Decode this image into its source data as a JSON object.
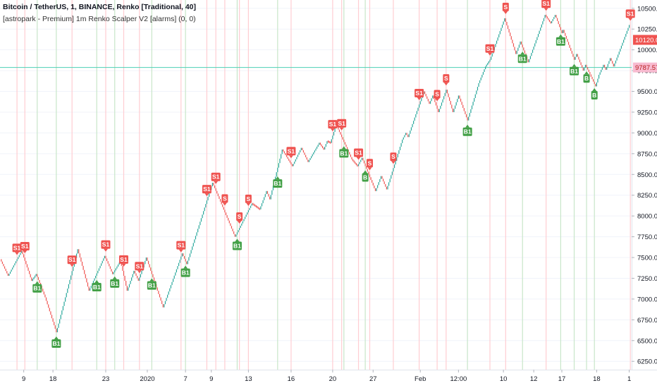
{
  "header": {
    "title": "Bitcoin / TetherUS, 1, BINANCE, Renko [Traditional, 40]",
    "indicator": "[astropark - Premium] 1m Renko Scalper V2 [alarms] (0, 0)"
  },
  "colors": {
    "up": "#26a69a",
    "down": "#ef5350",
    "buy_bg": "#43a047",
    "sell_bg": "#ef5350",
    "current_price_bg": "#ef5350",
    "hline": "#4dd0b4",
    "hline_label_bg": "#f8bbd0",
    "hline_label_text": "#b71c1c",
    "axis_text": "#131722",
    "grid": "#f0f3fa"
  },
  "price_labels": {
    "current": "10120.00",
    "line": "9787.57"
  },
  "chart_data": {
    "type": "renko",
    "box_size": 40,
    "ylim": [
      6150,
      10600
    ],
    "y_ticks": [
      "6250.00",
      "6500.00",
      "6750.00",
      "7000.00",
      "7250.00",
      "7500.00",
      "7750.00",
      "8000.00",
      "8250.00",
      "8500.00",
      "8750.00",
      "9000.00",
      "9250.00",
      "9500.00",
      "9750.00",
      "10000.00",
      "10250.00",
      "10500.00"
    ],
    "x_ticks": [
      "9",
      "18",
      "23",
      "2020",
      "7",
      "9",
      "13",
      "16",
      "20",
      "27",
      "Feb",
      "12:00",
      "10",
      "12",
      "17",
      "18",
      "1"
    ],
    "current_price": 10120.0,
    "horizontal_line": 9787.57,
    "path": [
      [
        7480,
        0
      ],
      [
        7280,
        7
      ],
      [
        7580,
        19
      ],
      [
        7220,
        28
      ],
      [
        7300,
        32
      ],
      [
        7020,
        40
      ],
      [
        6600,
        50
      ],
      [
        7600,
        69
      ],
      [
        7100,
        79
      ],
      [
        7520,
        93
      ],
      [
        7300,
        100
      ],
      [
        7460,
        107
      ],
      [
        7100,
        113
      ],
      [
        7340,
        119
      ],
      [
        7220,
        123
      ],
      [
        7500,
        130
      ],
      [
        6900,
        145
      ],
      [
        7550,
        162
      ],
      [
        7420,
        166
      ],
      [
        8400,
        189
      ],
      [
        7750,
        209
      ],
      [
        8150,
        224
      ],
      [
        8080,
        231
      ],
      [
        8300,
        237
      ],
      [
        8200,
        240
      ],
      [
        8800,
        251
      ],
      [
        8600,
        260
      ],
      [
        8820,
        268
      ],
      [
        8650,
        274
      ],
      [
        8880,
        284
      ],
      [
        8800,
        288
      ],
      [
        8900,
        291
      ],
      [
        8880,
        294
      ],
      [
        9100,
        299
      ],
      [
        8680,
        313
      ],
      [
        8600,
        318
      ],
      [
        8700,
        322
      ],
      [
        8300,
        334
      ],
      [
        8480,
        339
      ],
      [
        8320,
        344
      ],
      [
        8920,
        358
      ],
      [
        9000,
        361
      ],
      [
        8950,
        363
      ],
      [
        9500,
        377
      ],
      [
        9350,
        382
      ],
      [
        9450,
        385
      ],
      [
        9250,
        390
      ],
      [
        9520,
        397
      ],
      [
        9250,
        403
      ],
      [
        9450,
        408
      ],
      [
        9150,
        416
      ],
      [
        9600,
        426
      ],
      [
        9800,
        432
      ],
      [
        9880,
        436
      ],
      [
        10380,
        449
      ],
      [
        9950,
        459
      ],
      [
        10100,
        463
      ],
      [
        9850,
        470
      ],
      [
        10420,
        485
      ],
      [
        10320,
        490
      ],
      [
        10420,
        494
      ],
      [
        10200,
        500
      ],
      [
        10240,
        501
      ],
      [
        9880,
        511
      ],
      [
        9950,
        513
      ],
      [
        9750,
        519
      ],
      [
        9820,
        521
      ],
      [
        9560,
        530
      ],
      [
        9700,
        533
      ],
      [
        9820,
        537
      ],
      [
        9760,
        539
      ],
      [
        9900,
        543
      ],
      [
        9800,
        546
      ],
      [
        10300,
        560
      ]
    ],
    "signals": [
      {
        "label": "S1",
        "type": "sell",
        "index": 14
      },
      {
        "label": "S1",
        "type": "sell",
        "index": 21
      },
      {
        "label": "S1",
        "type": "sell",
        "index": 63
      },
      {
        "label": "S1",
        "type": "sell",
        "index": 93
      },
      {
        "label": "S1",
        "type": "sell",
        "index": 109
      },
      {
        "label": "S1",
        "type": "sell",
        "index": 123
      },
      {
        "label": "S1",
        "type": "sell",
        "index": 160
      },
      {
        "label": "S1",
        "type": "sell",
        "index": 183
      },
      {
        "label": "S1",
        "type": "sell",
        "index": 191
      },
      {
        "label": "S",
        "type": "sell",
        "index": 199
      },
      {
        "label": "S",
        "type": "sell",
        "index": 212
      },
      {
        "label": "S",
        "type": "sell",
        "index": 220
      },
      {
        "label": "S1",
        "type": "sell",
        "index": 258
      },
      {
        "label": "S1",
        "type": "sell",
        "index": 295
      },
      {
        "label": "S1",
        "type": "sell",
        "index": 303
      },
      {
        "label": "S1",
        "type": "sell",
        "index": 318
      },
      {
        "label": "S",
        "type": "sell",
        "index": 328
      },
      {
        "label": "S",
        "type": "sell",
        "index": 349
      },
      {
        "label": "S1",
        "type": "sell",
        "index": 372
      },
      {
        "label": "S",
        "type": "sell",
        "index": 388
      },
      {
        "label": "S",
        "type": "sell",
        "index": 396
      },
      {
        "label": "S1",
        "type": "sell",
        "index": 435
      },
      {
        "label": "S",
        "type": "sell",
        "index": 449
      },
      {
        "label": "S1",
        "type": "sell",
        "index": 485
      },
      {
        "label": "S1",
        "type": "sell",
        "index": 560
      },
      {
        "label": "B1",
        "type": "buy",
        "index": 32
      },
      {
        "label": "B1",
        "type": "buy",
        "index": 49
      },
      {
        "label": "B1",
        "type": "buy",
        "index": 85
      },
      {
        "label": "B1",
        "type": "buy",
        "index": 101
      },
      {
        "label": "B1",
        "type": "buy",
        "index": 134
      },
      {
        "label": "B1",
        "type": "buy",
        "index": 164
      },
      {
        "label": "B1",
        "type": "buy",
        "index": 210
      },
      {
        "label": "B1",
        "type": "buy",
        "index": 246
      },
      {
        "label": "B1",
        "type": "buy",
        "index": 305
      },
      {
        "label": "B",
        "type": "buy",
        "index": 324
      },
      {
        "label": "B1",
        "type": "buy",
        "index": 415
      },
      {
        "label": "B1",
        "type": "buy",
        "index": 464
      },
      {
        "label": "B1",
        "type": "buy",
        "index": 498
      },
      {
        "label": "B1",
        "type": "buy",
        "index": 510
      },
      {
        "label": "B",
        "type": "buy",
        "index": 521
      },
      {
        "label": "B",
        "type": "buy",
        "index": 528
      }
    ]
  }
}
